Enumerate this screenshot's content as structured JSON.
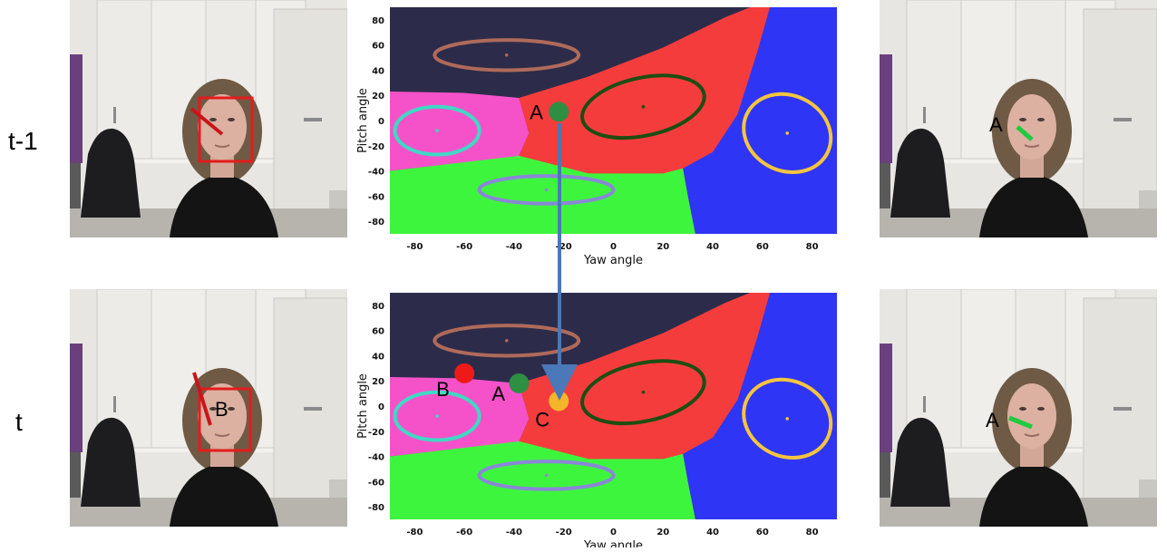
{
  "rows": [
    {
      "label": "t-1"
    },
    {
      "label": "t"
    }
  ],
  "plot": {
    "xlabel": "Yaw angle",
    "ylabel": "Pitch angle",
    "xticks": [
      -80,
      -60,
      -40,
      -20,
      0,
      20,
      40,
      60,
      80
    ],
    "yticks": [
      80,
      60,
      40,
      20,
      0,
      -20,
      -40,
      -60,
      -80
    ],
    "xlim": [
      -90,
      90
    ],
    "ylim": [
      -90,
      90
    ]
  },
  "regions": {
    "top": "#2c2c4a",
    "left": "#f552c9",
    "center": "#f53c3c",
    "bottom": "#3ef53e",
    "right": "#2f35f5"
  },
  "gaussians": [
    {
      "name": "top",
      "cx": -43,
      "cy": 52,
      "rx": 29,
      "ry": 12,
      "color": "#b06a5a"
    },
    {
      "name": "left",
      "cx": -71,
      "cy": -8,
      "rx": 17,
      "ry": 19,
      "color": "#3fd9c4"
    },
    {
      "name": "center",
      "cx": 12,
      "cy": 11,
      "rx": 25,
      "ry": 23,
      "color": "#1d4d12"
    },
    {
      "name": "bottom",
      "cx": -27,
      "cy": -55,
      "rx": 27,
      "ry": 11,
      "color": "#8a86d8"
    },
    {
      "name": "right",
      "cx": 70,
      "cy": -10,
      "rx": 18,
      "ry": 30,
      "color": "#f5c53e"
    }
  ],
  "plot1_points": [
    {
      "label": "A",
      "x": -22,
      "y": 7,
      "color": "#2e8f43"
    }
  ],
  "plot2_points": [
    {
      "label": "B",
      "x": -60,
      "y": 26,
      "color": "#ee1a1a"
    },
    {
      "label": "A",
      "x": -38,
      "y": 18,
      "color": "#2e8f43"
    },
    {
      "label": "C",
      "x": -22,
      "y": 4,
      "color": "#f5b52a"
    }
  ],
  "photo_labels": {
    "r1_right": "A",
    "r2_left": "B",
    "r2_right": "A"
  },
  "colors": {
    "face_box": "#e31c1c",
    "head_pose_red": "#c7161b",
    "head_pose_green": "#1ecb3e",
    "transition_arrow": "#4a78b8"
  }
}
